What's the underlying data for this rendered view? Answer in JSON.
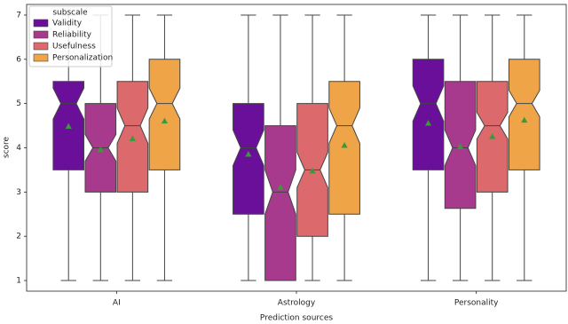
{
  "chart_data": {
    "type": "boxplot",
    "x_label": "Prediction sources",
    "y_label": "score",
    "legend_title": "subscale",
    "legend_position": "upper left",
    "categories": [
      "AI",
      "Astrology",
      "Personality"
    ],
    "ylim": [
      0.76,
      7.24
    ],
    "yticks": [
      1,
      2,
      3,
      4,
      5,
      6,
      7
    ],
    "mean_color": "#3a9a3a",
    "series": [
      {
        "name": "Validity",
        "color": "#6a0f9a",
        "values": [
          {
            "whislo": 1,
            "q1": 3.5,
            "notch_lo": 4.65,
            "med": 5,
            "notch_hi": 5.35,
            "q3": 5.5,
            "whishi": 7,
            "mean": 4.48
          },
          {
            "whislo": 1,
            "q1": 2.5,
            "notch_lo": 3.6,
            "med": 4,
            "notch_hi": 4.4,
            "q3": 5,
            "whishi": 7,
            "mean": 3.85
          },
          {
            "whislo": 1,
            "q1": 3.5,
            "notch_lo": 4.6,
            "med": 5,
            "notch_hi": 5.4,
            "q3": 6,
            "whishi": 7,
            "mean": 4.55
          }
        ]
      },
      {
        "name": "Reliability",
        "color": "#a83a8d",
        "values": [
          {
            "whislo": 1,
            "q1": 3,
            "notch_lo": 3.7,
            "med": 4,
            "notch_hi": 4.3,
            "q3": 5,
            "whishi": 7,
            "mean": 3.95
          },
          {
            "whislo": 1,
            "q1": 1,
            "notch_lo": 2.5,
            "med": 3,
            "notch_hi": 3.5,
            "q3": 4.5,
            "whishi": 7,
            "mean": 3.1
          },
          {
            "whislo": 1,
            "q1": 2.63,
            "notch_lo": 3.6,
            "med": 4,
            "notch_hi": 4.4,
            "q3": 5.5,
            "whishi": 7,
            "mean": 4.02
          }
        ]
      },
      {
        "name": "Usefulness",
        "color": "#dc6a6d",
        "values": [
          {
            "whislo": 1,
            "q1": 3,
            "notch_lo": 4.1,
            "med": 4.5,
            "notch_hi": 4.9,
            "q3": 5.5,
            "whishi": 7,
            "mean": 4.2
          },
          {
            "whislo": 1,
            "q1": 2,
            "notch_lo": 3.1,
            "med": 3.5,
            "notch_hi": 3.9,
            "q3": 5,
            "whishi": 7,
            "mean": 3.47
          },
          {
            "whislo": 1,
            "q1": 3,
            "notch_lo": 4.2,
            "med": 4.5,
            "notch_hi": 4.8,
            "q3": 5.5,
            "whishi": 7,
            "mean": 4.25
          }
        ]
      },
      {
        "name": "Personalization",
        "color": "#f0a448",
        "values": [
          {
            "whislo": 1,
            "q1": 3.5,
            "notch_lo": 4.65,
            "med": 5,
            "notch_hi": 5.35,
            "q3": 6,
            "whishi": 7,
            "mean": 4.6
          },
          {
            "whislo": 1,
            "q1": 2.5,
            "notch_lo": 4.1,
            "med": 4.5,
            "notch_hi": 4.9,
            "q3": 5.5,
            "whishi": 7,
            "mean": 4.05
          },
          {
            "whislo": 1,
            "q1": 3.5,
            "notch_lo": 4.7,
            "med": 5,
            "notch_hi": 5.3,
            "q3": 6,
            "whishi": 7,
            "mean": 4.62
          }
        ]
      }
    ]
  }
}
